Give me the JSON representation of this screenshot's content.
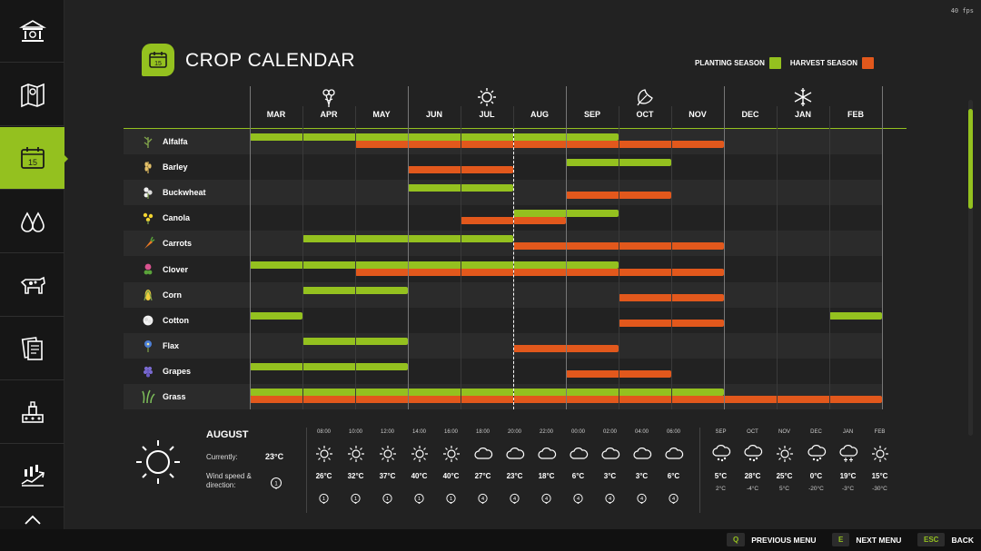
{
  "fps": "40 fps",
  "title": "CROP CALENDAR",
  "legend": {
    "planting": "PLANTING SEASON",
    "harvest": "HARVEST SEASON"
  },
  "colors": {
    "accent": "#94c11f",
    "harvest": "#e2581c",
    "background": "#222222"
  },
  "sidebar": [
    {
      "icon": "bank-icon"
    },
    {
      "icon": "map-icon"
    },
    {
      "icon": "calendar-icon",
      "active": true
    },
    {
      "icon": "water-drops-icon"
    },
    {
      "icon": "cow-icon"
    },
    {
      "icon": "contracts-icon"
    },
    {
      "icon": "production-icon"
    },
    {
      "icon": "finance-icon"
    },
    {
      "icon": "more-icon"
    }
  ],
  "months": [
    "MAR",
    "APR",
    "MAY",
    "JUN",
    "JUL",
    "AUG",
    "SEP",
    "OCT",
    "NOV",
    "DEC",
    "JAN",
    "FEB"
  ],
  "seasons": [
    "spring-flower-icon",
    "summer-sun-icon",
    "autumn-leaf-icon",
    "winter-snowflake-icon"
  ],
  "current_month_index": 5.0,
  "crops": [
    {
      "name": "Alfalfa",
      "icon": "alfalfa-icon",
      "planting": [
        [
          0,
          7
        ]
      ],
      "harvest": [
        [
          2,
          9
        ]
      ]
    },
    {
      "name": "Barley",
      "icon": "barley-icon",
      "planting": [
        [
          6,
          8
        ]
      ],
      "harvest": [
        [
          3,
          5
        ]
      ]
    },
    {
      "name": "Buckwheat",
      "icon": "buckwheat-icon",
      "planting": [
        [
          3,
          5
        ]
      ],
      "harvest": [
        [
          6,
          8
        ]
      ]
    },
    {
      "name": "Canola",
      "icon": "canola-icon",
      "planting": [
        [
          5,
          7
        ]
      ],
      "harvest": [
        [
          4,
          6
        ]
      ]
    },
    {
      "name": "Carrots",
      "icon": "carrot-icon",
      "planting": [
        [
          1,
          5
        ]
      ],
      "harvest": [
        [
          5,
          9
        ]
      ]
    },
    {
      "name": "Clover",
      "icon": "clover-icon",
      "planting": [
        [
          0,
          7
        ]
      ],
      "harvest": [
        [
          2,
          9
        ]
      ]
    },
    {
      "name": "Corn",
      "icon": "corn-icon",
      "planting": [
        [
          1,
          3
        ]
      ],
      "harvest": [
        [
          7,
          9
        ]
      ]
    },
    {
      "name": "Cotton",
      "icon": "cotton-icon",
      "planting": [
        [
          0,
          1
        ],
        [
          11,
          12
        ]
      ],
      "harvest": [
        [
          7,
          9
        ]
      ]
    },
    {
      "name": "Flax",
      "icon": "flax-icon",
      "planting": [
        [
          1,
          3
        ]
      ],
      "harvest": [
        [
          5,
          7
        ]
      ]
    },
    {
      "name": "Grapes",
      "icon": "grapes-icon",
      "planting": [
        [
          0,
          3
        ]
      ],
      "harvest": [
        [
          6,
          8
        ]
      ]
    },
    {
      "name": "Grass",
      "icon": "grass-icon",
      "planting": [
        [
          0,
          9
        ]
      ],
      "harvest": [
        [
          0,
          12
        ]
      ]
    }
  ],
  "weather": {
    "month": "AUGUST",
    "currently_label": "Currently:",
    "currently_value": "23°C",
    "wind_label": "Wind speed & direction:",
    "wind_value": "1",
    "hourly": [
      {
        "time": "08:00",
        "icon": "sun",
        "temp": "26°C",
        "wind": "1"
      },
      {
        "time": "10:00",
        "icon": "sun",
        "temp": "32°C",
        "wind": "1"
      },
      {
        "time": "12:00",
        "icon": "sun",
        "temp": "37°C",
        "wind": "1"
      },
      {
        "time": "14:00",
        "icon": "sun",
        "temp": "40°C",
        "wind": "1"
      },
      {
        "time": "16:00",
        "icon": "sun",
        "temp": "40°C",
        "wind": "1"
      },
      {
        "time": "18:00",
        "icon": "cloud",
        "temp": "27°C",
        "wind": "4"
      },
      {
        "time": "20:00",
        "icon": "cloud",
        "temp": "23°C",
        "wind": "4"
      },
      {
        "time": "22:00",
        "icon": "cloud",
        "temp": "18°C",
        "wind": "4"
      },
      {
        "time": "00:00",
        "icon": "cloud",
        "temp": "6°C",
        "wind": "4"
      },
      {
        "time": "02:00",
        "icon": "cloud",
        "temp": "3°C",
        "wind": "4"
      },
      {
        "time": "04:00",
        "icon": "cloud",
        "temp": "3°C",
        "wind": "4"
      },
      {
        "time": "06:00",
        "icon": "cloud",
        "temp": "6°C",
        "wind": "4"
      }
    ],
    "monthly": [
      {
        "month": "SEP",
        "icon": "hail",
        "high": "5°C",
        "low": "2°C"
      },
      {
        "month": "OCT",
        "icon": "hail",
        "high": "28°C",
        "low": "-4°C"
      },
      {
        "month": "NOV",
        "icon": "sun",
        "high": "25°C",
        "low": "5°C"
      },
      {
        "month": "DEC",
        "icon": "hail",
        "high": "0°C",
        "low": "-20°C"
      },
      {
        "month": "JAN",
        "icon": "snow",
        "high": "19°C",
        "low": "-3°C"
      },
      {
        "month": "FEB",
        "icon": "sun",
        "high": "15°C",
        "low": "-30°C"
      }
    ]
  },
  "footer": [
    {
      "key": "Q",
      "label": "PREVIOUS MENU"
    },
    {
      "key": "E",
      "label": "NEXT MENU"
    },
    {
      "key": "ESC",
      "label": "BACK"
    }
  ]
}
